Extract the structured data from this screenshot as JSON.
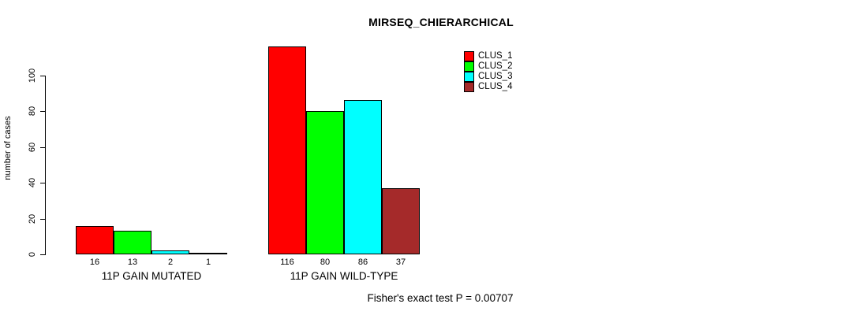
{
  "chart_data": {
    "type": "bar",
    "title": "MIRSEQ_CHIERARCHICAL",
    "ylabel": "number of cases",
    "xlabel": "",
    "categories": [
      "11P GAIN MUTATED",
      "11P GAIN WILD-TYPE"
    ],
    "series": [
      {
        "name": "CLUS_1",
        "color": "#FF0000",
        "values": [
          16,
          116
        ]
      },
      {
        "name": "CLUS_2",
        "color": "#00FF00",
        "values": [
          13,
          80
        ]
      },
      {
        "name": "CLUS_3",
        "color": "#00FFFF",
        "values": [
          2,
          86
        ]
      },
      {
        "name": "CLUS_4",
        "color": "#A52A2A",
        "values": [
          1,
          37
        ]
      }
    ],
    "bar_value_labels_shown": true,
    "yticks": [
      0,
      20,
      40,
      60,
      80,
      100
    ],
    "ylim": [
      0,
      116
    ],
    "grid": false,
    "legend_position": "top-right",
    "legend_entries": [
      "CLUS_1",
      "CLUS_2",
      "CLUS_3",
      "CLUS_4"
    ],
    "annotation": "Fisher's exact test P = 0.00707"
  }
}
